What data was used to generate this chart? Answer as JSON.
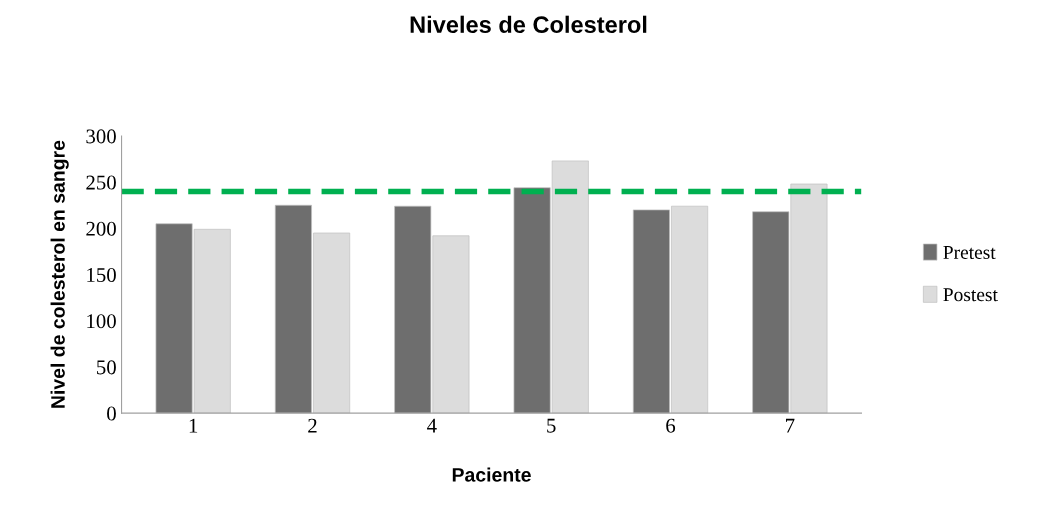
{
  "chart_data": {
    "type": "bar",
    "title": "Niveles de Colesterol",
    "xlabel": "Paciente",
    "ylabel": "Nivel de colesterol en sangre",
    "categories": [
      "1",
      "2",
      "4",
      "5",
      "6",
      "7"
    ],
    "series": [
      {
        "name": "Pretest",
        "color": "#6e6e6e",
        "values": [
          205,
          225,
          224,
          244,
          220,
          218
        ]
      },
      {
        "name": "Postest",
        "color": "#dcdcdc",
        "values": [
          199,
          195,
          192,
          273,
          224,
          248
        ]
      }
    ],
    "ylim": [
      0,
      300
    ],
    "yticks": [
      0,
      50,
      100,
      150,
      200,
      250,
      300
    ],
    "grid": false,
    "legend": "right",
    "ref_lines": [
      {
        "axis": "y",
        "value": 240,
        "color": "#00b050",
        "line_style": "dashed"
      }
    ]
  }
}
